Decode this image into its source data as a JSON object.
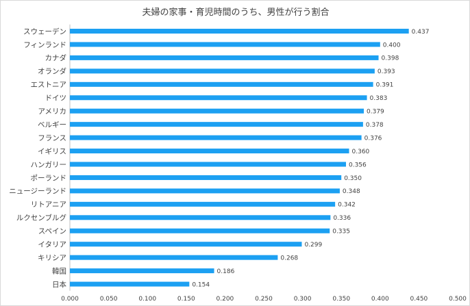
{
  "chart_data": {
    "type": "bar",
    "orientation": "horizontal",
    "title": "夫婦の家事・育児時間のうち、男性が行う割合",
    "categories": [
      "スウェーデン",
      "フィンランド",
      "カナダ",
      "オランダ",
      "エストニア",
      "ドイツ",
      "アメリカ",
      "ベルギー",
      "フランス",
      "イギリス",
      "ハンガリー",
      "ポーランド",
      "ニュージーランド",
      "リトアニア",
      "ルクセンブルグ",
      "スペイン",
      "イタリア",
      "キリシア",
      "韓国",
      "日本"
    ],
    "values": [
      0.437,
      0.4,
      0.398,
      0.393,
      0.391,
      0.383,
      0.379,
      0.378,
      0.376,
      0.36,
      0.356,
      0.35,
      0.348,
      0.342,
      0.336,
      0.335,
      0.299,
      0.268,
      0.186,
      0.154
    ],
    "value_labels": [
      "0.437",
      "0.400",
      "0.398",
      "0.393",
      "0.391",
      "0.383",
      "0.379",
      "0.378",
      "0.376",
      "0.360",
      "0.356",
      "0.350",
      "0.348",
      "0.342",
      "0.336",
      "0.335",
      "0.299",
      "0.268",
      "0.186",
      "0.154"
    ],
    "xlim": [
      0,
      0.5
    ],
    "x_ticks": [
      0,
      0.05,
      0.1,
      0.15,
      0.2,
      0.25,
      0.3,
      0.35,
      0.4,
      0.45,
      0.5
    ],
    "x_tick_labels": [
      "0.000",
      "0.050",
      "0.100",
      "0.150",
      "0.200",
      "0.250",
      "0.300",
      "0.350",
      "0.400",
      "0.450",
      "0.500"
    ],
    "xlabel": "",
    "ylabel": "",
    "grid": false,
    "legend": "none",
    "bar_color": "#1CA0F2"
  }
}
